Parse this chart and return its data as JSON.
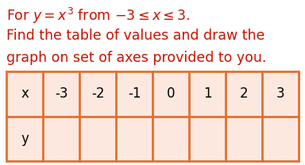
{
  "line1": "For $y = x^3$ from $-3 \\leq x \\leq 3$.",
  "line2": "Find the table of values and draw the",
  "line3": "graph on set of axes provided to you.",
  "x_label": "x",
  "y_label": "y",
  "x_values": [
    "-3",
    "-2",
    "-1",
    "0",
    "1",
    "2",
    "3"
  ],
  "text_color": "#cc1100",
  "table_border_color": "#e07030",
  "table_fill_color": "#fde8e0",
  "bg_color": "#ffffff",
  "font_size_text": 12.5,
  "font_size_table": 12
}
